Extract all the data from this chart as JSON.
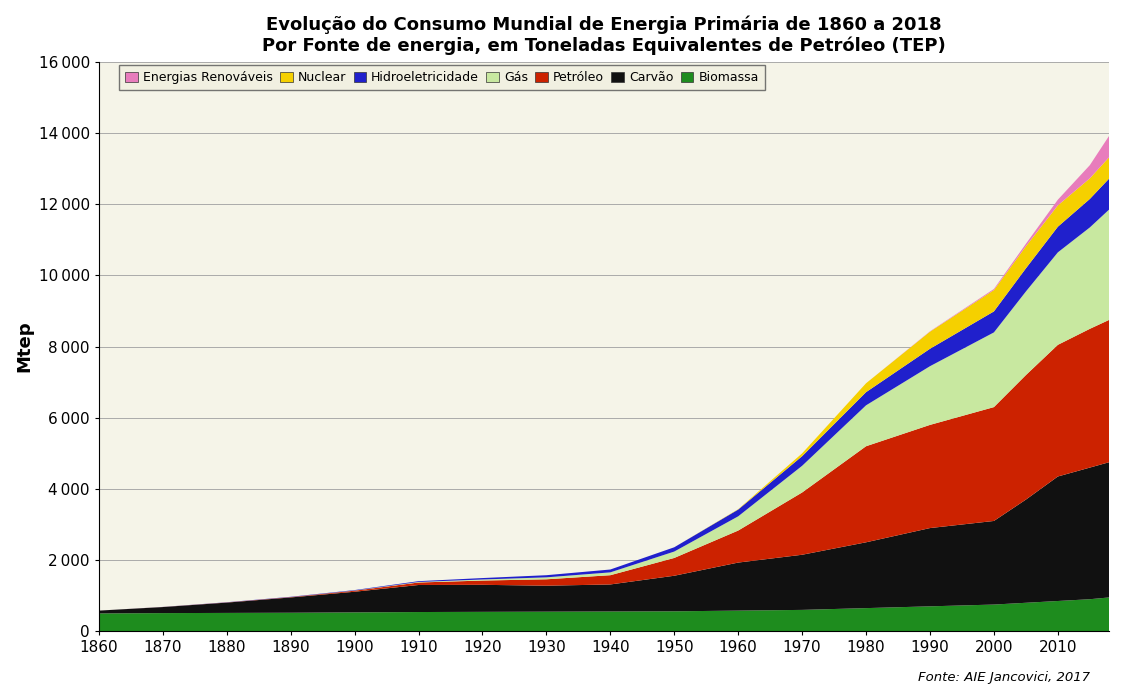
{
  "title_line1": "Evolução do Consumo Mundial de Energia Primária de 1860 a 2018",
  "title_line2": "Por Fonte de energia, em Toneladas Equivalentes de Petróleo (TEP)",
  "ylabel": "Mtep",
  "source_note": "Fonte: AIE Jancovici, 2017",
  "bg_color": "#f5f4e8",
  "fig_bg": "#ffffff",
  "years": [
    1860,
    1870,
    1880,
    1890,
    1900,
    1910,
    1920,
    1930,
    1940,
    1950,
    1960,
    1970,
    1980,
    1990,
    2000,
    2005,
    2010,
    2015,
    2018
  ],
  "series_order": [
    "Biomassa",
    "Carvão",
    "Petróleo",
    "Gás",
    "Hidroeletricidade",
    "Nuclear",
    "Energias Renováveis"
  ],
  "series": {
    "Biomassa": {
      "color": "#1e8c1e",
      "values": [
        500,
        510,
        515,
        520,
        530,
        540,
        545,
        550,
        555,
        560,
        580,
        600,
        650,
        700,
        750,
        800,
        850,
        900,
        950
      ]
    },
    "Carvão": {
      "color": "#111111",
      "values": [
        80,
        170,
        290,
        430,
        580,
        760,
        760,
        730,
        760,
        1000,
        1350,
        1550,
        1850,
        2200,
        2350,
        2900,
        3500,
        3700,
        3800
      ]
    },
    "Petróleo": {
      "color": "#cc2200",
      "values": [
        0,
        2,
        5,
        10,
        30,
        70,
        120,
        180,
        260,
        500,
        900,
        1750,
        2700,
        2900,
        3200,
        3500,
        3700,
        3900,
        4000
      ]
    },
    "Gás": {
      "color": "#c8e8a0",
      "values": [
        0,
        0,
        0,
        0,
        5,
        15,
        30,
        55,
        80,
        180,
        400,
        750,
        1150,
        1650,
        2100,
        2350,
        2600,
        2850,
        3100
      ]
    },
    "Hidroeletricidade": {
      "color": "#2020cc",
      "values": [
        0,
        2,
        5,
        8,
        12,
        22,
        40,
        60,
        80,
        120,
        190,
        270,
        370,
        490,
        590,
        650,
        720,
        800,
        870
      ]
    },
    "Nuclear": {
      "color": "#f5d000",
      "values": [
        0,
        0,
        0,
        0,
        0,
        0,
        0,
        0,
        0,
        0,
        10,
        80,
        250,
        480,
        600,
        620,
        600,
        580,
        600
      ]
    },
    "Energias Renováveis": {
      "color": "#e87cbc",
      "values": [
        0,
        0,
        0,
        0,
        0,
        0,
        0,
        0,
        0,
        0,
        0,
        0,
        0,
        10,
        30,
        70,
        160,
        370,
        600
      ]
    }
  },
  "ylim": [
    0,
    16000
  ],
  "yticks": [
    0,
    2000,
    4000,
    6000,
    8000,
    10000,
    12000,
    14000,
    16000
  ],
  "xticks": [
    1860,
    1870,
    1880,
    1890,
    1900,
    1910,
    1920,
    1930,
    1940,
    1950,
    1960,
    1970,
    1980,
    1990,
    2000,
    2010
  ],
  "legend_order": [
    "Energias Renováveis",
    "Nuclear",
    "Hidroeletricidade",
    "Gás",
    "Petróleo",
    "Carvão",
    "Biomassa"
  ]
}
